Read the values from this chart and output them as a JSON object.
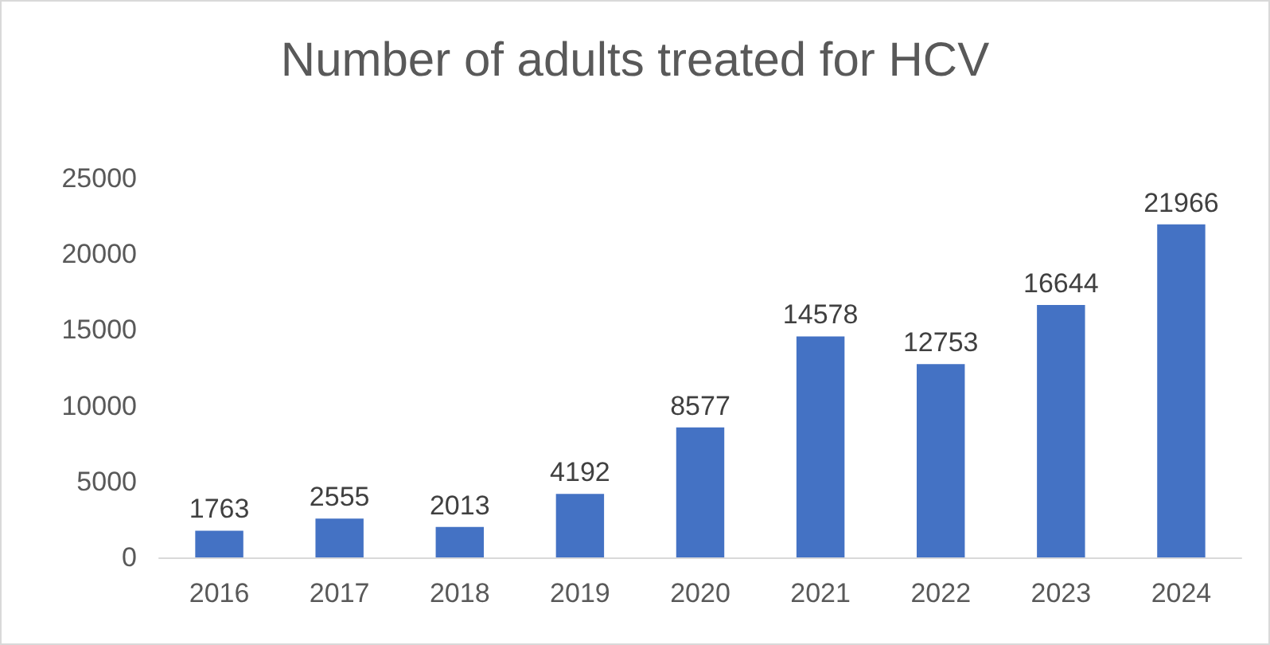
{
  "chart_data": {
    "type": "bar",
    "title": "Number of adults treated for HCV",
    "categories": [
      "2016",
      "2017",
      "2018",
      "2019",
      "2020",
      "2021",
      "2022",
      "2023",
      "2024"
    ],
    "values": [
      1763,
      2555,
      2013,
      4192,
      8577,
      14578,
      12753,
      16644,
      21966
    ],
    "color": "#4472c4",
    "ylim": [
      0,
      25000
    ],
    "yticks": [
      0,
      5000,
      10000,
      15000,
      20000,
      25000
    ],
    "data_labels": true
  }
}
